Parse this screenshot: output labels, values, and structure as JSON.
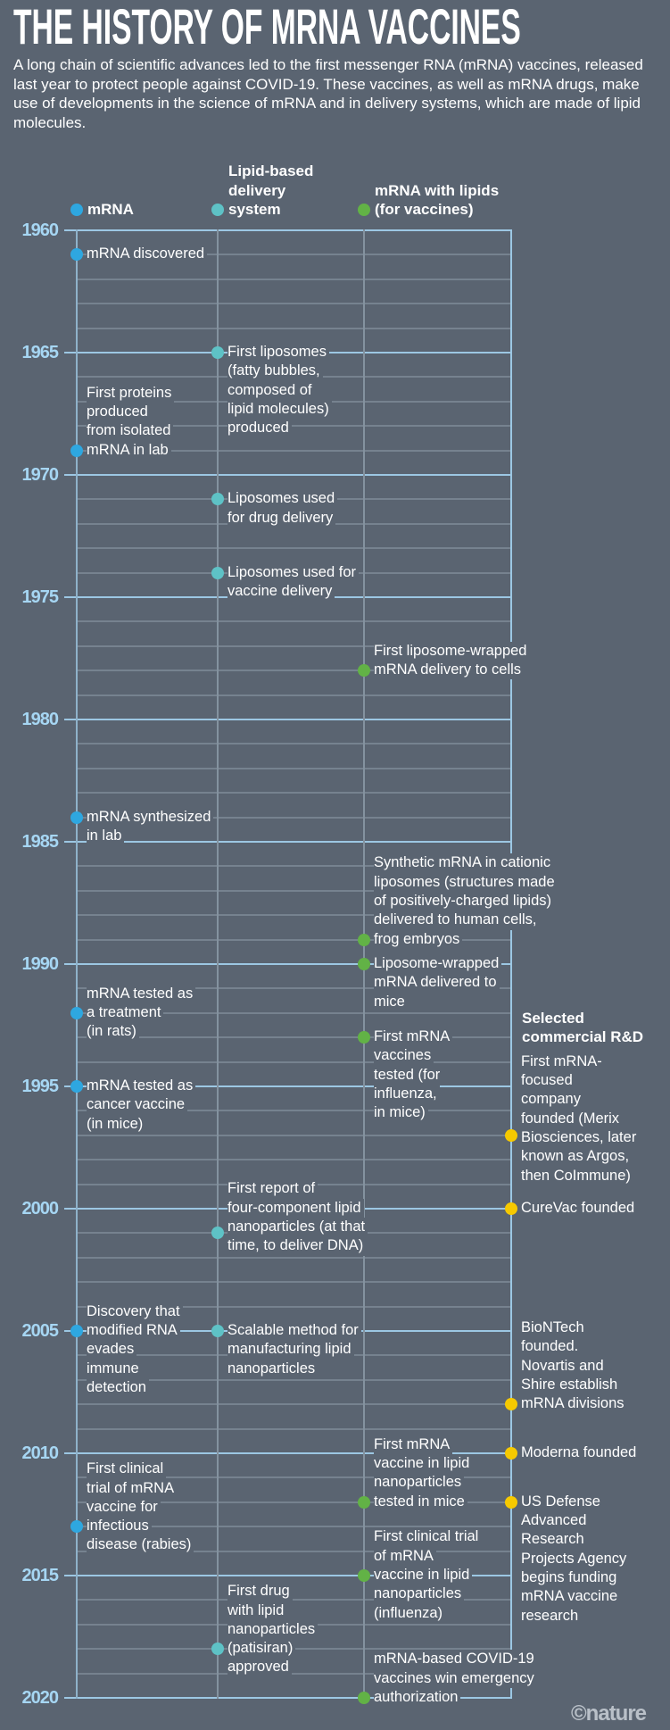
{
  "title": "THE HISTORY OF MRNA VACCINES",
  "intro": "A long chain of scientific advances led to the first messenger RNA (mRNA) vaccines, released last year to protect people against COVID-19. These vaccines, as well as mRNA drugs, make use of developments in the science of mRNA and in delivery systems, which are made of lipid molecules.",
  "colors": {
    "mrna": "#2ea7e0",
    "lipid": "#5ec2c6",
    "mrna_lipid": "#62b246",
    "commercial": "#f6c900",
    "year": "#a6d6f3",
    "background": "#5a6471"
  },
  "timeline": {
    "start_year": 1960,
    "end_year": 2020,
    "labeled_years": [
      "1960",
      "1965",
      "1970",
      "1975",
      "1980",
      "1985",
      "1990",
      "1995",
      "2000",
      "2005",
      "2010",
      "2015",
      "2020"
    ]
  },
  "categories": [
    {
      "id": "mrna",
      "label": [
        "mRNA"
      ]
    },
    {
      "id": "lipid",
      "label": [
        "Lipid-based",
        "delivery",
        "system"
      ]
    },
    {
      "id": "mrna_lipid",
      "label": [
        "mRNA with lipids",
        "(for vaccines)"
      ]
    },
    {
      "id": "commercial",
      "label": [
        "Selected",
        "commercial R&D"
      ]
    }
  ],
  "events": [
    {
      "year": 1961,
      "category": "mrna",
      "lines": [
        "mRNA discovered"
      ]
    },
    {
      "year": 1969,
      "category": "mrna",
      "lines": [
        "First proteins",
        "produced",
        "from isolated",
        "mRNA in lab"
      ]
    },
    {
      "year": 1984,
      "category": "mrna",
      "lines": [
        "mRNA synthesized",
        "in lab"
      ]
    },
    {
      "year": 1992,
      "category": "mrna",
      "lines": [
        "mRNA tested as",
        "a treatment",
        "(in rats)"
      ]
    },
    {
      "year": 1995,
      "category": "mrna",
      "lines": [
        "mRNA tested as",
        "cancer vaccine",
        "(in mice)"
      ]
    },
    {
      "year": 2005,
      "category": "mrna",
      "lines": [
        "Discovery that",
        "modified RNA",
        "evades",
        "immune",
        "detection"
      ]
    },
    {
      "year": 2013,
      "category": "mrna",
      "lines": [
        "First clinical",
        "trial of mRNA",
        "vaccine for",
        "infectious",
        "disease (rabies)"
      ]
    },
    {
      "year": 1965,
      "category": "lipid",
      "lines": [
        "First liposomes",
        "(fatty bubbles,",
        "composed of",
        "lipid molecules)",
        "produced"
      ]
    },
    {
      "year": 1971,
      "category": "lipid",
      "lines": [
        "Liposomes used",
        "for drug delivery"
      ]
    },
    {
      "year": 1974,
      "category": "lipid",
      "lines": [
        "Liposomes used for",
        "vaccine delivery"
      ]
    },
    {
      "year": 2001,
      "category": "lipid",
      "lines": [
        "First report of",
        "four-component lipid",
        "nanoparticles (at that",
        "time, to deliver DNA)"
      ]
    },
    {
      "year": 2005,
      "category": "lipid",
      "lines": [
        "Scalable method for",
        "manufacturing lipid",
        "nanoparticles"
      ]
    },
    {
      "year": 2018,
      "category": "lipid",
      "lines": [
        "First drug",
        "with lipid",
        "nanoparticles",
        "(patisiran)",
        "approved"
      ]
    },
    {
      "year": 1978,
      "category": "mrna_lipid",
      "lines": [
        "First liposome-wrapped",
        "mRNA delivery to cells"
      ]
    },
    {
      "year": 1989,
      "category": "mrna_lipid",
      "lines": [
        "Synthetic mRNA in cationic",
        "liposomes (structures made",
        "of positively-charged lipids)",
        "delivered to human cells,",
        "frog embryos"
      ]
    },
    {
      "year": 1990,
      "category": "mrna_lipid",
      "lines": [
        "Liposome-wrapped",
        "mRNA delivered to",
        "mice"
      ]
    },
    {
      "year": 1993,
      "category": "mrna_lipid",
      "lines": [
        "First mRNA",
        "vaccines",
        "tested (for",
        "influenza,",
        "in mice)"
      ]
    },
    {
      "year": 2012,
      "category": "mrna_lipid",
      "lines": [
        "First mRNA",
        "vaccine in lipid",
        "nanoparticles",
        "tested in mice"
      ]
    },
    {
      "year": 2015,
      "category": "mrna_lipid",
      "lines": [
        "First clinical trial",
        "of mRNA",
        "vaccine in lipid",
        "nanoparticles",
        "(influenza)"
      ]
    },
    {
      "year": 2020,
      "category": "mrna_lipid",
      "lines": [
        "mRNA-based COVID-19",
        "vaccines win emergency",
        "authorization"
      ]
    },
    {
      "year": 1997,
      "category": "commercial",
      "lines": [
        "First mRNA-",
        "focused",
        "company",
        "founded (Merix",
        "Biosciences, later",
        "known as Argos,",
        "then CoImmune)"
      ]
    },
    {
      "year": 2000,
      "category": "commercial",
      "lines": [
        "CureVac founded"
      ]
    },
    {
      "year": 2008,
      "category": "commercial",
      "lines": [
        "BioNTech",
        "founded.",
        "Novartis and",
        "Shire establish",
        "mRNA divisions"
      ]
    },
    {
      "year": 2010,
      "category": "commercial",
      "lines": [
        "Moderna founded"
      ]
    },
    {
      "year": 2012,
      "category": "commercial",
      "lines": [
        "US Defense",
        "Advanced",
        "Research",
        "Projects Agency",
        "begins funding",
        "mRNA vaccine",
        "research"
      ]
    }
  ],
  "credit": "©nature"
}
